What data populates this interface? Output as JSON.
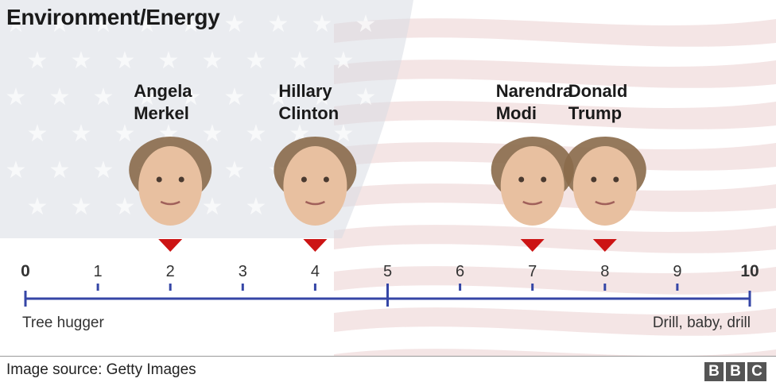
{
  "title": "Environment/Energy",
  "source": "Image source: Getty Images",
  "logo": {
    "letters": [
      "B",
      "B",
      "C"
    ]
  },
  "colors": {
    "axis": "#3546a6",
    "marker": "#cc1414",
    "flag_stripe": "#f0dcdc",
    "flag_canton": "#d9dde4"
  },
  "chart_data": {
    "type": "scatter",
    "title": "Environment/Energy",
    "xlim": [
      0,
      10
    ],
    "ticks": [
      0,
      1,
      2,
      3,
      4,
      5,
      6,
      7,
      8,
      9,
      10
    ],
    "annotations": {
      "left": "Tree hugger",
      "right": "Drill, baby, drill"
    },
    "points": [
      {
        "name_lines": [
          "Angela",
          "Merkel"
        ],
        "value": 2
      },
      {
        "name_lines": [
          "Hillary",
          "Clinton"
        ],
        "value": 4
      },
      {
        "name_lines": [
          "Narendra",
          "Modi"
        ],
        "value": 7
      },
      {
        "name_lines": [
          "Donald",
          "Trump"
        ],
        "value": 8
      }
    ]
  }
}
